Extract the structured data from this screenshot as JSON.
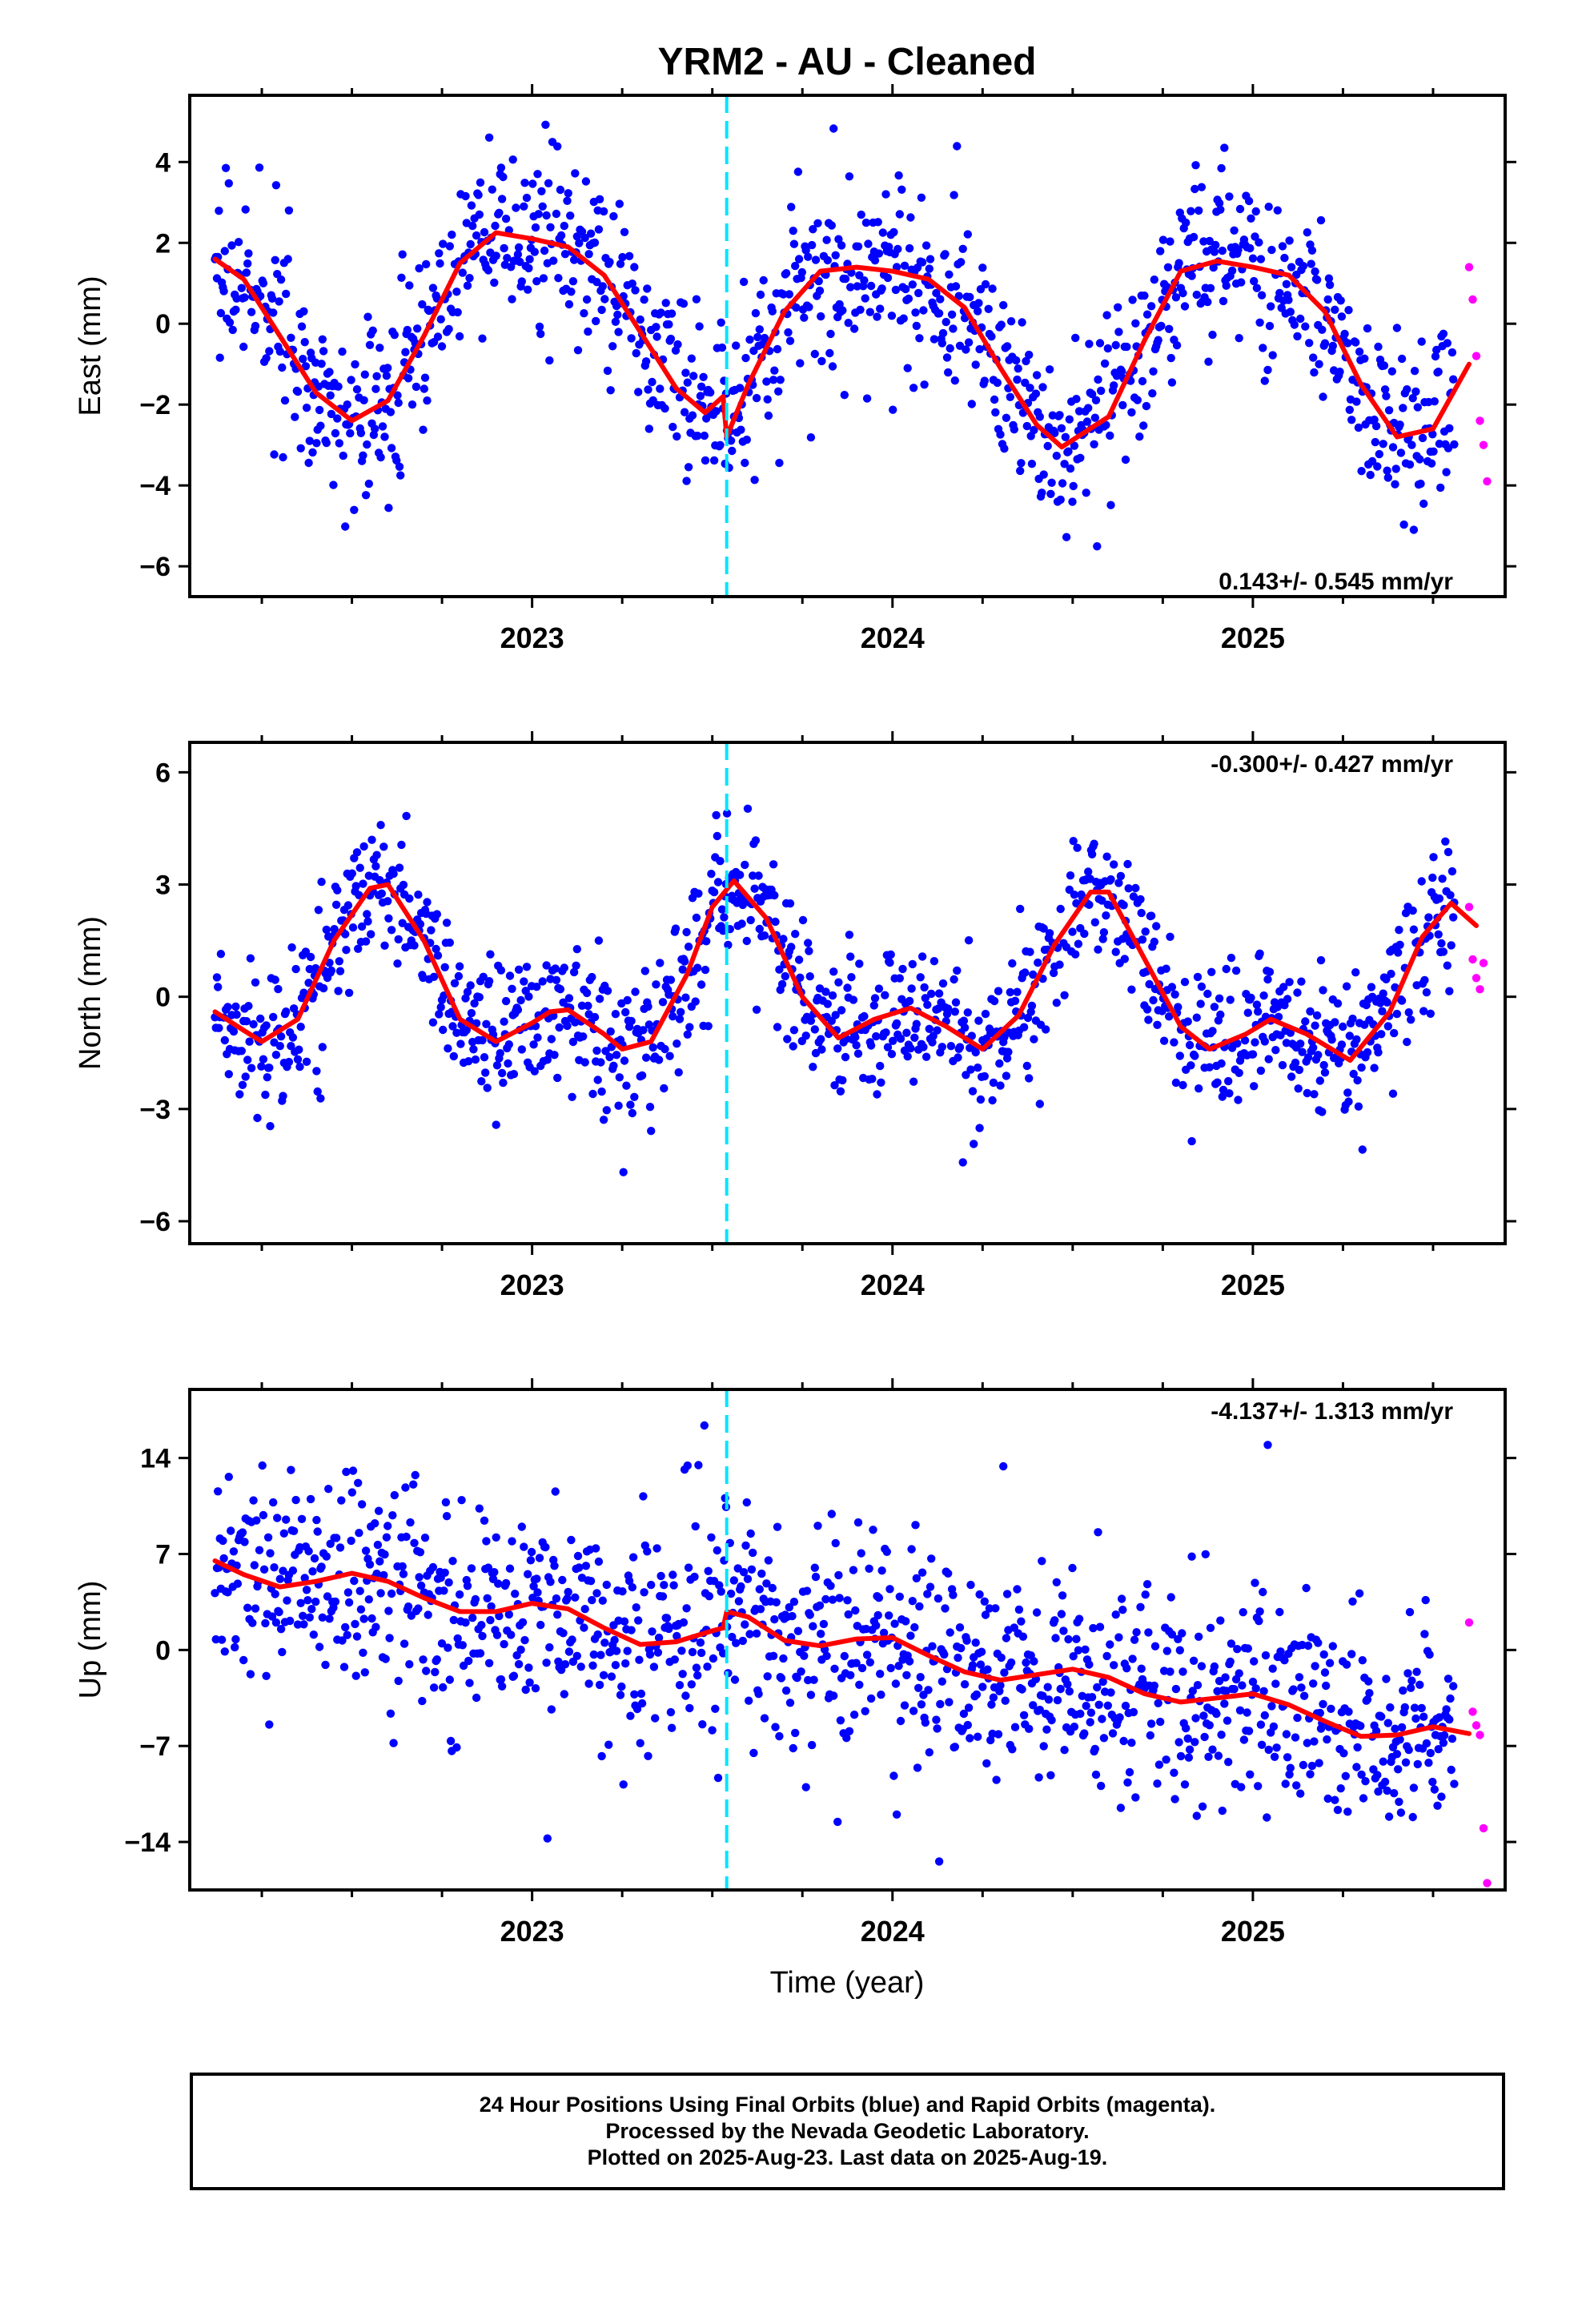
{
  "title": "YRM2  - AU - Cleaned",
  "xlabel": "Time (year)",
  "footer": {
    "line1": "24 Hour Positions Using Final Orbits (blue) and Rapid Orbits (magenta).",
    "line2": "Processed by the Nevada Geodetic Laboratory.",
    "line3": "Plotted on 2025-Aug-23. Last data on 2025-Aug-19."
  },
  "colors": {
    "final_orbits": "#0000ff",
    "rapid_orbits": "#ff00ff",
    "model_fit": "#ff0000",
    "equipment_change": "#00e5ff",
    "frame": "#000000"
  },
  "chart_data": [
    {
      "type": "scatter",
      "ylabel": "East (mm)",
      "rate_label": "0.143+/- 0.545 mm/yr",
      "xlim": [
        2022.05,
        2025.7
      ],
      "ylim": [
        -6.75,
        5.65
      ],
      "yticks": [
        4,
        2,
        0,
        -2,
        -4,
        -6
      ],
      "xticks": [
        2023,
        2024,
        2025
      ],
      "x_minor_step": 0.25,
      "break_year": 2023.54,
      "final_range": [
        2022.12,
        2025.56
      ],
      "rapid_x": [
        2025.6,
        2025.61,
        2025.62,
        2025.63,
        2025.64,
        2025.65
      ],
      "rapid_y": [
        1.4,
        0.6,
        -0.8,
        -2.4,
        -3.0,
        -3.9
      ],
      "fit": [
        [
          2022.12,
          1.6
        ],
        [
          2022.2,
          1.1
        ],
        [
          2022.3,
          -0.3
        ],
        [
          2022.4,
          -1.7
        ],
        [
          2022.5,
          -2.4
        ],
        [
          2022.6,
          -1.9
        ],
        [
          2022.7,
          -0.3
        ],
        [
          2022.8,
          1.5
        ],
        [
          2022.9,
          2.25
        ],
        [
          2023.0,
          2.1
        ],
        [
          2023.1,
          1.9
        ],
        [
          2023.2,
          1.2
        ],
        [
          2023.3,
          -0.2
        ],
        [
          2023.4,
          -1.6
        ],
        [
          2023.48,
          -2.2
        ],
        [
          2023.53,
          -1.8
        ],
        [
          2023.54,
          -2.8
        ],
        [
          2023.6,
          -1.5
        ],
        [
          2023.7,
          0.3
        ],
        [
          2023.8,
          1.3
        ],
        [
          2023.9,
          1.4
        ],
        [
          2024.0,
          1.3
        ],
        [
          2024.1,
          1.1
        ],
        [
          2024.2,
          0.4
        ],
        [
          2024.3,
          -1.1
        ],
        [
          2024.4,
          -2.5
        ],
        [
          2024.47,
          -3.05
        ],
        [
          2024.6,
          -2.3
        ],
        [
          2024.7,
          -0.4
        ],
        [
          2024.8,
          1.3
        ],
        [
          2024.9,
          1.55
        ],
        [
          2025.0,
          1.4
        ],
        [
          2025.1,
          1.2
        ],
        [
          2025.2,
          0.3
        ],
        [
          2025.3,
          -1.5
        ],
        [
          2025.4,
          -2.8
        ],
        [
          2025.5,
          -2.6
        ],
        [
          2025.6,
          -1.0
        ]
      ],
      "seasonal": {
        "amp": 2.8,
        "amp2": 0.4,
        "trend": 0.143,
        "noise": 1.05
      }
    },
    {
      "type": "scatter",
      "ylabel": "North (mm)",
      "rate_label": "-0.300+/- 0.427 mm/yr",
      "xlim": [
        2022.05,
        2025.7
      ],
      "ylim": [
        -6.6,
        6.8
      ],
      "yticks": [
        6,
        3,
        0,
        -3,
        -6
      ],
      "xticks": [
        2023,
        2024,
        2025
      ],
      "x_minor_step": 0.25,
      "break_year": 2023.54,
      "final_range": [
        2022.12,
        2025.56
      ],
      "rapid_x": [
        2025.6,
        2025.61,
        2025.62,
        2025.63,
        2025.64
      ],
      "rapid_y": [
        2.4,
        1.0,
        0.5,
        0.2,
        0.9
      ],
      "fit": [
        [
          2022.12,
          -0.4
        ],
        [
          2022.2,
          -0.9
        ],
        [
          2022.25,
          -1.2
        ],
        [
          2022.35,
          -0.6
        ],
        [
          2022.45,
          1.5
        ],
        [
          2022.55,
          2.9
        ],
        [
          2022.6,
          3.0
        ],
        [
          2022.7,
          1.5
        ],
        [
          2022.8,
          -0.6
        ],
        [
          2022.9,
          -1.2
        ],
        [
          2023.0,
          -0.7
        ],
        [
          2023.05,
          -0.4
        ],
        [
          2023.1,
          -0.35
        ],
        [
          2023.2,
          -1.0
        ],
        [
          2023.25,
          -1.4
        ],
        [
          2023.33,
          -1.2
        ],
        [
          2023.43,
          0.6
        ],
        [
          2023.5,
          2.4
        ],
        [
          2023.56,
          3.1
        ],
        [
          2023.65,
          2.1
        ],
        [
          2023.75,
          0.0
        ],
        [
          2023.85,
          -1.1
        ],
        [
          2023.95,
          -0.6
        ],
        [
          2024.05,
          -0.3
        ],
        [
          2024.15,
          -0.8
        ],
        [
          2024.25,
          -1.4
        ],
        [
          2024.35,
          -0.5
        ],
        [
          2024.45,
          1.4
        ],
        [
          2024.55,
          2.8
        ],
        [
          2024.6,
          2.8
        ],
        [
          2024.7,
          1.0
        ],
        [
          2024.8,
          -0.8
        ],
        [
          2024.88,
          -1.4
        ],
        [
          2024.98,
          -1.0
        ],
        [
          2025.05,
          -0.6
        ],
        [
          2025.15,
          -1.0
        ],
        [
          2025.27,
          -1.7
        ],
        [
          2025.38,
          -0.4
        ],
        [
          2025.47,
          1.6
        ],
        [
          2025.55,
          2.5
        ],
        [
          2025.62,
          1.9
        ]
      ],
      "seasonal": {
        "amp": 2.1,
        "amp2": 0.9,
        "trend": -0.3,
        "noise": 0.95
      }
    },
    {
      "type": "scatter",
      "ylabel": "Up (mm)",
      "rate_label": "-4.137+/- 1.313 mm/yr",
      "xlim": [
        2022.05,
        2025.7
      ],
      "ylim": [
        -17.5,
        19.0
      ],
      "yticks": [
        14,
        7,
        0,
        -7,
        -14
      ],
      "xticks": [
        2023,
        2024,
        2025
      ],
      "x_minor_step": 0.25,
      "break_year": 2023.54,
      "final_range": [
        2022.12,
        2025.56
      ],
      "rapid_x": [
        2025.6,
        2025.61,
        2025.62,
        2025.63,
        2025.64,
        2025.65
      ],
      "rapid_y": [
        2.0,
        -4.5,
        -5.5,
        -6.2,
        -13.0,
        -17.0
      ],
      "fit": [
        [
          2022.12,
          6.5
        ],
        [
          2022.2,
          5.5
        ],
        [
          2022.3,
          4.6
        ],
        [
          2022.4,
          5.0
        ],
        [
          2022.5,
          5.6
        ],
        [
          2022.6,
          5.0
        ],
        [
          2022.7,
          3.8
        ],
        [
          2022.8,
          2.8
        ],
        [
          2022.9,
          2.8
        ],
        [
          2023.0,
          3.4
        ],
        [
          2023.1,
          3.0
        ],
        [
          2023.2,
          1.6
        ],
        [
          2023.3,
          0.4
        ],
        [
          2023.4,
          0.6
        ],
        [
          2023.5,
          1.4
        ],
        [
          2023.53,
          1.6
        ],
        [
          2023.54,
          2.8
        ],
        [
          2023.6,
          2.4
        ],
        [
          2023.7,
          0.7
        ],
        [
          2023.8,
          0.3
        ],
        [
          2023.9,
          0.8
        ],
        [
          2024.0,
          0.9
        ],
        [
          2024.1,
          -0.4
        ],
        [
          2024.2,
          -1.6
        ],
        [
          2024.3,
          -2.2
        ],
        [
          2024.4,
          -1.8
        ],
        [
          2024.5,
          -1.4
        ],
        [
          2024.6,
          -2.0
        ],
        [
          2024.7,
          -3.2
        ],
        [
          2024.8,
          -3.8
        ],
        [
          2024.9,
          -3.5
        ],
        [
          2025.0,
          -3.2
        ],
        [
          2025.1,
          -4.0
        ],
        [
          2025.2,
          -5.2
        ],
        [
          2025.3,
          -6.3
        ],
        [
          2025.4,
          -6.2
        ],
        [
          2025.5,
          -5.6
        ],
        [
          2025.6,
          -6.1
        ]
      ],
      "seasonal": {
        "amp": 1.2,
        "amp2": 0.6,
        "trend": -4.137,
        "noise": 3.8
      }
    }
  ]
}
